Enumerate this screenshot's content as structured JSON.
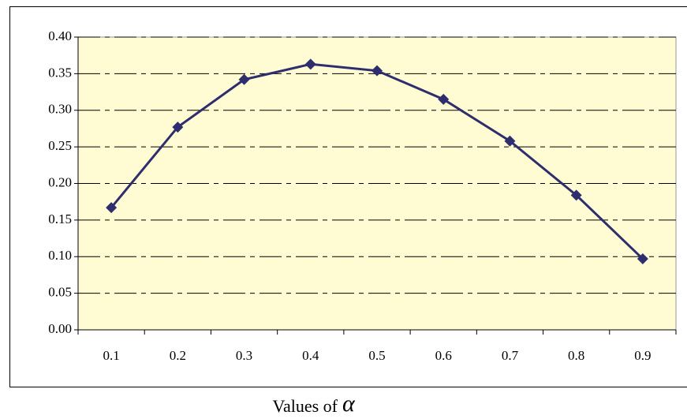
{
  "chart_data": {
    "type": "line",
    "xlabel": "Values of",
    "xlabel_symbol": "α",
    "categories": [
      "0.1",
      "0.2",
      "0.3",
      "0.4",
      "0.5",
      "0.6",
      "0.7",
      "0.8",
      "0.9"
    ],
    "series": [
      {
        "color": "#2e2e6e",
        "values": [
          0.167,
          0.277,
          0.342,
          0.363,
          0.354,
          0.315,
          0.258,
          0.184,
          0.097
        ]
      }
    ],
    "ylim": [
      0,
      0.4
    ],
    "yticks": [
      {
        "value": 0,
        "label": "0.00"
      },
      {
        "value": 0.05,
        "label": "0.05"
      },
      {
        "value": 0.1,
        "label": "0.10"
      },
      {
        "value": 0.15,
        "label": "0.15"
      },
      {
        "value": 0.2,
        "label": "0.20"
      },
      {
        "value": 0.25,
        "label": "0.25"
      },
      {
        "value": 0.3,
        "label": "0.30"
      },
      {
        "value": 0.35,
        "label": "0.35"
      },
      {
        "value": 0.4,
        "label": "0.40"
      }
    ],
    "grid": true
  }
}
